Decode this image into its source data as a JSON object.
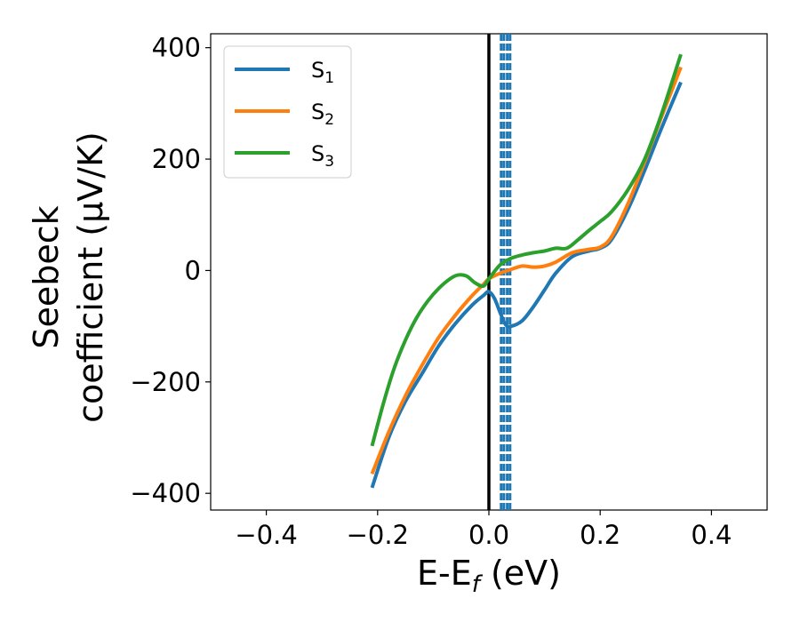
{
  "chart_data": {
    "type": "line",
    "xlabel": "E-E",
    "xlabel_sub": "f",
    "xlabel_unit": " (eV)",
    "ylabel_line1": "Seebeck",
    "ylabel_line2": "coefficient  (μV/K)",
    "xlim": [
      -0.5,
      0.5
    ],
    "ylim": [
      -430,
      425
    ],
    "xticks": [
      -0.4,
      -0.2,
      0.0,
      0.2,
      0.4
    ],
    "xtick_labels": [
      "−0.4",
      "−0.2",
      "0.0",
      "0.2",
      "0.4"
    ],
    "yticks": [
      -400,
      -200,
      0,
      200,
      400
    ],
    "ytick_labels": [
      "−400",
      "−200",
      "0",
      "200",
      "400"
    ],
    "grid": false,
    "legend_position": "top-left",
    "fermi_line_x": 0.0,
    "dashed_lines_x": [
      0.022,
      0.027,
      0.033,
      0.038
    ],
    "series": [
      {
        "name": "S",
        "name_sub": "1",
        "color": "#1f77b4",
        "x": [
          -0.21,
          -0.18,
          -0.15,
          -0.12,
          -0.09,
          -0.06,
          -0.03,
          -0.01,
          0.0,
          0.01,
          0.02,
          0.03,
          0.04,
          0.06,
          0.08,
          0.1,
          0.12,
          0.15,
          0.18,
          0.2,
          0.22,
          0.25,
          0.28,
          0.31,
          0.345
        ],
        "y": [
          -390,
          -300,
          -235,
          -185,
          -135,
          -95,
          -62,
          -45,
          -38,
          -50,
          -75,
          -97,
          -100,
          -90,
          -65,
          -35,
          -5,
          25,
          35,
          40,
          55,
          110,
          180,
          255,
          338
        ]
      },
      {
        "name": "S",
        "name_sub": "2",
        "color": "#ff7f0e",
        "x": [
          -0.21,
          -0.18,
          -0.15,
          -0.12,
          -0.09,
          -0.06,
          -0.03,
          -0.01,
          0.0,
          0.02,
          0.04,
          0.06,
          0.08,
          0.1,
          0.12,
          0.15,
          0.18,
          0.2,
          0.22,
          0.25,
          0.28,
          0.31,
          0.345
        ],
        "y": [
          -365,
          -290,
          -225,
          -170,
          -120,
          -80,
          -45,
          -25,
          -15,
          -5,
          2,
          8,
          6,
          8,
          15,
          32,
          38,
          42,
          60,
          120,
          195,
          275,
          365
        ]
      },
      {
        "name": "S",
        "name_sub": "3",
        "color": "#2ca02c",
        "x": [
          -0.21,
          -0.19,
          -0.17,
          -0.15,
          -0.13,
          -0.11,
          -0.09,
          -0.07,
          -0.055,
          -0.04,
          -0.025,
          -0.01,
          0.0,
          0.02,
          0.04,
          0.06,
          0.08,
          0.1,
          0.12,
          0.14,
          0.16,
          0.18,
          0.2,
          0.22,
          0.25,
          0.28,
          0.31,
          0.345
        ],
        "y": [
          -315,
          -240,
          -175,
          -125,
          -85,
          -55,
          -32,
          -15,
          -8,
          -10,
          -22,
          -28,
          -15,
          10,
          22,
          28,
          32,
          35,
          40,
          40,
          55,
          72,
          88,
          105,
          145,
          200,
          280,
          388
        ]
      }
    ]
  }
}
